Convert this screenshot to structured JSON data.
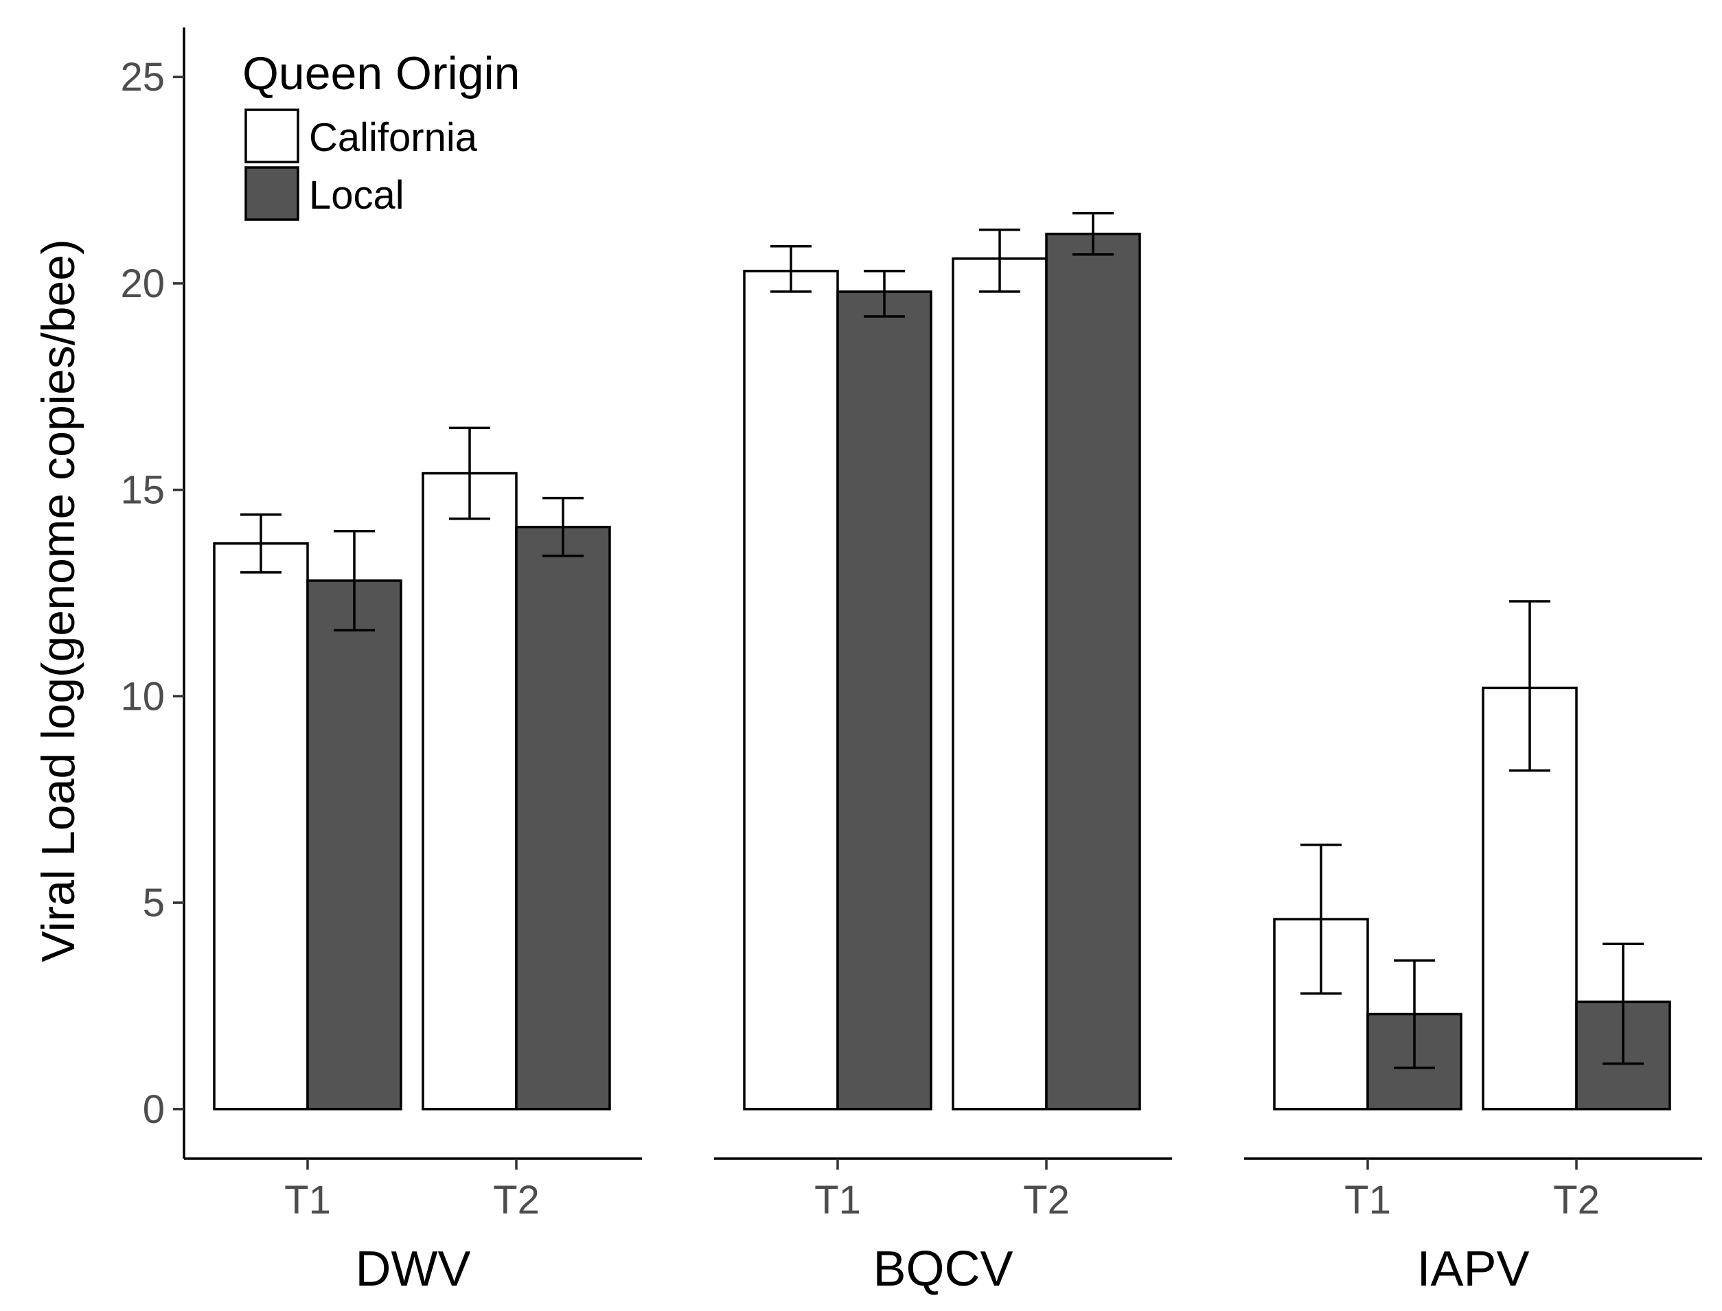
{
  "chart_data": {
    "type": "bar",
    "ylabel": "Viral Load log(genome copies/bee)",
    "ylim": [
      -1.2,
      26.2
    ],
    "yticks": [
      0,
      5,
      10,
      15,
      20,
      25
    ],
    "legend": {
      "title": "Queen Origin",
      "position": "top-left",
      "entries": [
        {
          "label": "California",
          "color": "#ffffff"
        },
        {
          "label": "Local",
          "color": "#545454"
        }
      ]
    },
    "panels": [
      {
        "name": "DWV",
        "categories": [
          "T1",
          "T2"
        ],
        "series": [
          {
            "name": "California",
            "values": [
              13.7,
              15.4
            ],
            "err_low": [
              13.0,
              14.3
            ],
            "err_high": [
              14.4,
              16.5
            ]
          },
          {
            "name": "Local",
            "values": [
              12.8,
              14.1
            ],
            "err_low": [
              11.6,
              13.4
            ],
            "err_high": [
              14.0,
              14.8
            ]
          }
        ]
      },
      {
        "name": "BQCV",
        "categories": [
          "T1",
          "T2"
        ],
        "series": [
          {
            "name": "California",
            "values": [
              20.3,
              20.6
            ],
            "err_low": [
              19.8,
              19.8
            ],
            "err_high": [
              20.9,
              21.3
            ]
          },
          {
            "name": "Local",
            "values": [
              19.8,
              21.2
            ],
            "err_low": [
              19.2,
              20.7
            ],
            "err_high": [
              20.3,
              21.7
            ]
          }
        ]
      },
      {
        "name": "IAPV",
        "categories": [
          "T1",
          "T2"
        ],
        "series": [
          {
            "name": "California",
            "values": [
              4.6,
              10.2
            ],
            "err_low": [
              2.8,
              8.2
            ],
            "err_high": [
              6.4,
              12.3
            ]
          },
          {
            "name": "Local",
            "values": [
              2.3,
              2.6
            ],
            "err_low": [
              1.0,
              1.1
            ],
            "err_high": [
              3.6,
              4.0
            ]
          }
        ]
      }
    ],
    "grid": false
  }
}
